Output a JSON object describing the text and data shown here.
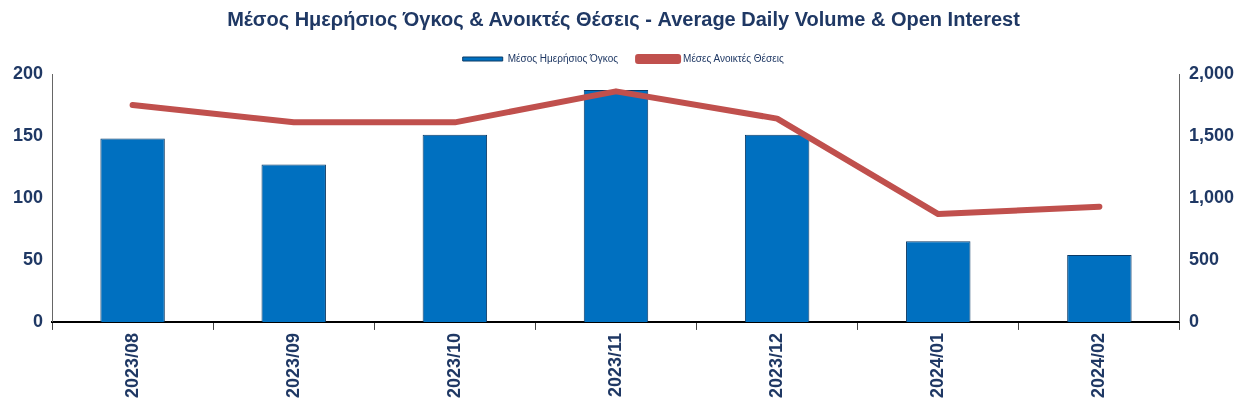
{
  "chart_data": {
    "type": "bar",
    "title": "Μέσος Ημερήσιος Όγκος & Ανοικτές Θέσεις - Average Daily Volume & Open Interest",
    "categories": [
      "2023/08",
      "2023/09",
      "2023/10",
      "2023/11",
      "2023/12",
      "2024/01",
      "2024/02"
    ],
    "series": [
      {
        "name": "Μέσος Ημερήσιος Όγκος",
        "color": "#0070c0",
        "values": [
          148,
          127,
          151,
          187,
          151,
          65,
          54
        ]
      },
      {
        "name": "Μέσες Ανοικτές Θέσεις",
        "type": "line",
        "axis": "y2",
        "color": "#c0504d",
        "values": [
          1750,
          1610,
          1610,
          1860,
          1640,
          870,
          930
        ]
      }
    ],
    "ylim": [
      0,
      200
    ],
    "yticks": [
      0,
      50,
      100,
      150,
      200
    ],
    "y2lim": [
      0,
      2000
    ],
    "y2ticks": [
      {
        "value": 0,
        "label": "0"
      },
      {
        "value": 500,
        "label": "500"
      },
      {
        "value": 1000,
        "label": "1,000"
      },
      {
        "value": 1500,
        "label": "1,500"
      },
      {
        "value": 2000,
        "label": "2,000"
      }
    ],
    "grid": false,
    "legend": "top",
    "marker": "none",
    "line_style": "solid"
  }
}
